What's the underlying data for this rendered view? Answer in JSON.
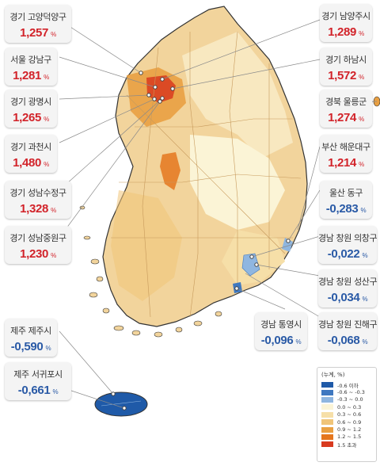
{
  "callouts": [
    {
      "name": "경기 고양덕양구",
      "value": "1,257",
      "unit": "%",
      "dir": "up"
    },
    {
      "name": "서울 강남구",
      "value": "1,281",
      "unit": "%",
      "dir": "up"
    },
    {
      "name": "경기 광명시",
      "value": "1,265",
      "unit": "%",
      "dir": "up"
    },
    {
      "name": "경기 과천시",
      "value": "1,480",
      "unit": "%",
      "dir": "up"
    },
    {
      "name": "경기 성남수정구",
      "value": "1,328",
      "unit": "%",
      "dir": "up"
    },
    {
      "name": "경기 성남중원구",
      "value": "1,230",
      "unit": "%",
      "dir": "up"
    },
    {
      "name": "제주 제주시",
      "value": "-0,590",
      "unit": "%",
      "dir": "down"
    },
    {
      "name": "제주 서귀포시",
      "value": "-0,661",
      "unit": "%",
      "dir": "down"
    },
    {
      "name": "경기 남양주시",
      "value": "1,289",
      "unit": "%",
      "dir": "up"
    },
    {
      "name": "경기 하남시",
      "value": "1,572",
      "unit": "%",
      "dir": "up"
    },
    {
      "name": "경북 울릉군",
      "value": "1,274",
      "unit": "%",
      "dir": "up"
    },
    {
      "name": "부산 해운대구",
      "value": "1,214",
      "unit": "%",
      "dir": "up"
    },
    {
      "name": "울산 동구",
      "value": "-0,283",
      "unit": "%",
      "dir": "down"
    },
    {
      "name": "경남 창원 의창구",
      "value": "-0,022",
      "unit": "%",
      "dir": "down"
    },
    {
      "name": "경남 창원 성산구",
      "value": "-0,034",
      "unit": "%",
      "dir": "down"
    },
    {
      "name": "경남 통영시",
      "value": "-0,096",
      "unit": "%",
      "dir": "down"
    },
    {
      "name": "경남 창원 진해구",
      "value": "-0,068",
      "unit": "%",
      "dir": "down"
    }
  ],
  "legend": {
    "title": "(누계, %)",
    "items": [
      {
        "label": "-0.6 이하",
        "color": "#1f5aa8"
      },
      {
        "label": "-0.6 ~ -0.3",
        "color": "#3f78c0"
      },
      {
        "label": "-0.3 ~ 0.0",
        "color": "#8fb6e0"
      },
      {
        "label": "0.0 ~ 0.3",
        "color": "#fbf4d6"
      },
      {
        "label": "0.3 ~ 0.6",
        "color": "#f6dfa8"
      },
      {
        "label": "0.6 ~ 0.9",
        "color": "#f0c579"
      },
      {
        "label": "0.9 ~ 1.2",
        "color": "#e9a042"
      },
      {
        "label": "1.2 ~ 1.5",
        "color": "#e5771e"
      },
      {
        "label": "1.5 초과",
        "color": "#d83a1f"
      }
    ]
  },
  "colors": {
    "mainland_base": "#f2d49c",
    "boundary": "#c79a5c",
    "outline": "#333333",
    "leader_line": "#8a8a8a",
    "up_value": "#d2232a",
    "down_value": "#2a5aa6"
  }
}
